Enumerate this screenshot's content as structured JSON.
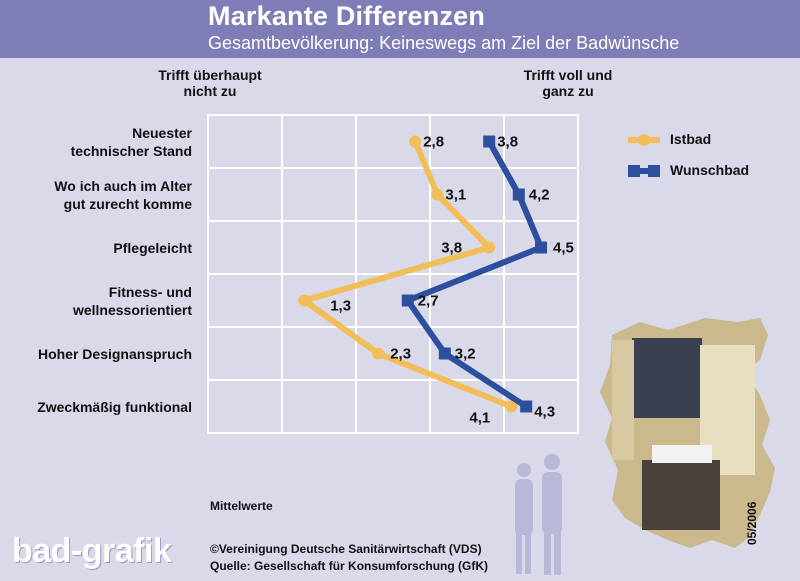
{
  "header": {
    "title": "Markante Differenzen",
    "subtitle": "Gesamtbevölkerung: Keineswegs am Ziel der Badwünsche"
  },
  "columns": {
    "left_line1": "Trifft überhaupt",
    "left_line2": "nicht zu",
    "right_line1": "Trifft voll und",
    "right_line2": "ganz zu"
  },
  "legend": {
    "istbad": "Istbad",
    "wunschbad": "Wunschbad"
  },
  "notes": {
    "mittelwerte": "Mittelwerte",
    "copyright": "©Vereinigung Deutsche Sanitärwirtschaft (VDS)",
    "quelle": "Quelle: Gesellschaft für Konsumforschung (GfK)",
    "date": "05/2006",
    "logo": "bad-grafik"
  },
  "colors": {
    "header": "#7f7db7",
    "background": "#d9d9ea",
    "istbad": "#f2be5a",
    "wunschbad": "#2c4f9e"
  },
  "chart_data": {
    "type": "line",
    "orientation": "horizontal",
    "categories": [
      [
        "Neuester",
        "technischer Stand"
      ],
      [
        "Wo ich auch im Alter",
        "gut zurecht komme"
      ],
      [
        "Pflegeleicht"
      ],
      [
        "Fitness- und",
        "wellnessorientiert"
      ],
      [
        "Hoher Designanspruch"
      ],
      [
        "Zweckmäßig funktional"
      ]
    ],
    "series": [
      {
        "name": "Istbad",
        "values": [
          2.8,
          3.1,
          3.8,
          1.3,
          2.3,
          4.1
        ],
        "labels": [
          "2,8",
          "3,1",
          "3,8",
          "1,3",
          "2,3",
          "4,1"
        ]
      },
      {
        "name": "Wunschbad",
        "values": [
          3.8,
          4.2,
          4.5,
          2.7,
          3.2,
          4.3
        ],
        "labels": [
          "3,8",
          "4,2",
          "4,5",
          "2,7",
          "3,2",
          "4,3"
        ]
      }
    ],
    "xlim": [
      0,
      5
    ],
    "grid": true,
    "legend_position": "right"
  }
}
